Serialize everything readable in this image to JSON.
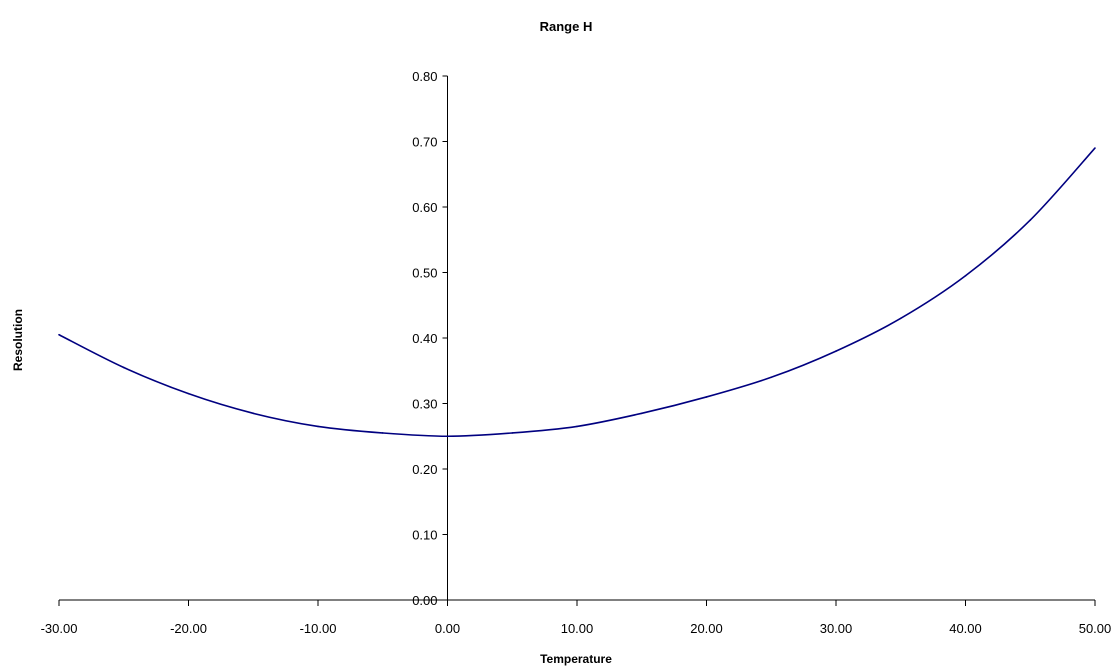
{
  "chart_data": {
    "type": "line",
    "title": "Range H",
    "xlabel": "Temperature",
    "ylabel": "Resolution",
    "xlim": [
      -30,
      50
    ],
    "ylim": [
      0,
      0.8
    ],
    "x_ticks": [
      "-30.00",
      "-20.00",
      "-10.00",
      "0.00",
      "10.00",
      "20.00",
      "30.00",
      "40.00",
      "50.00"
    ],
    "y_ticks": [
      "0.00",
      "0.10",
      "0.20",
      "0.30",
      "0.40",
      "0.50",
      "0.60",
      "0.70",
      "0.80"
    ],
    "grid": false,
    "line_color": "#000080",
    "series": [
      {
        "x": [
          -30,
          -25,
          -20,
          -15,
          -10,
          -5,
          0,
          5,
          10,
          15,
          20,
          25,
          30,
          35,
          40,
          45,
          50
        ],
        "values": [
          0.405,
          0.355,
          0.315,
          0.285,
          0.265,
          0.255,
          0.25,
          0.255,
          0.265,
          0.285,
          0.31,
          0.34,
          0.38,
          0.43,
          0.495,
          0.58,
          0.69
        ]
      }
    ]
  }
}
